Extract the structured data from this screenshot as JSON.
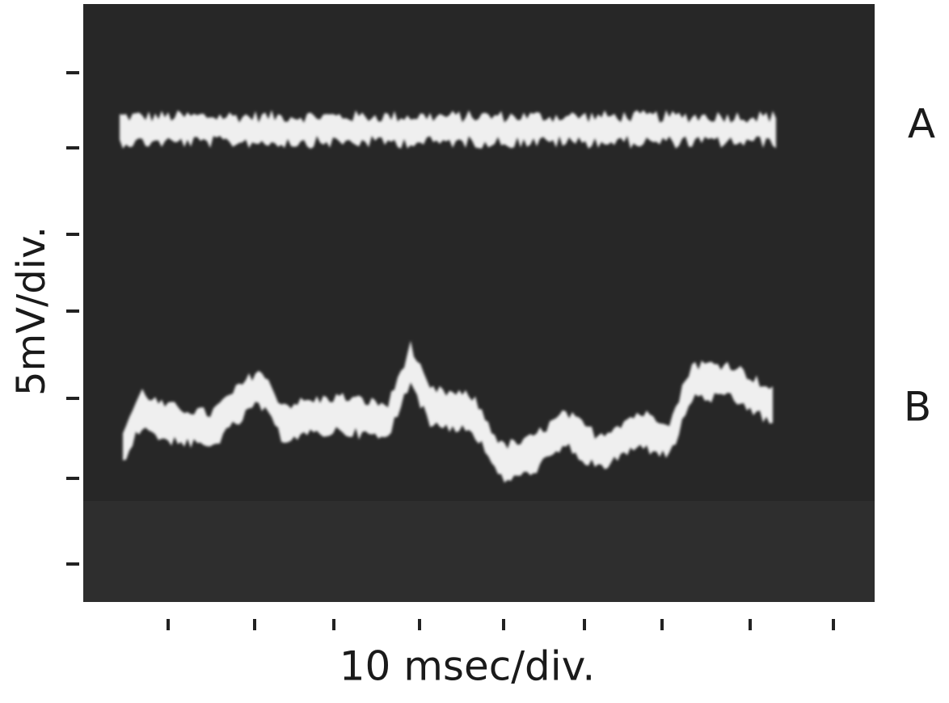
{
  "y_axis_label": "5mV/div.",
  "x_axis_label": "10 msec/div.",
  "traces": [
    {
      "label": "A"
    },
    {
      "label": "B"
    }
  ]
}
